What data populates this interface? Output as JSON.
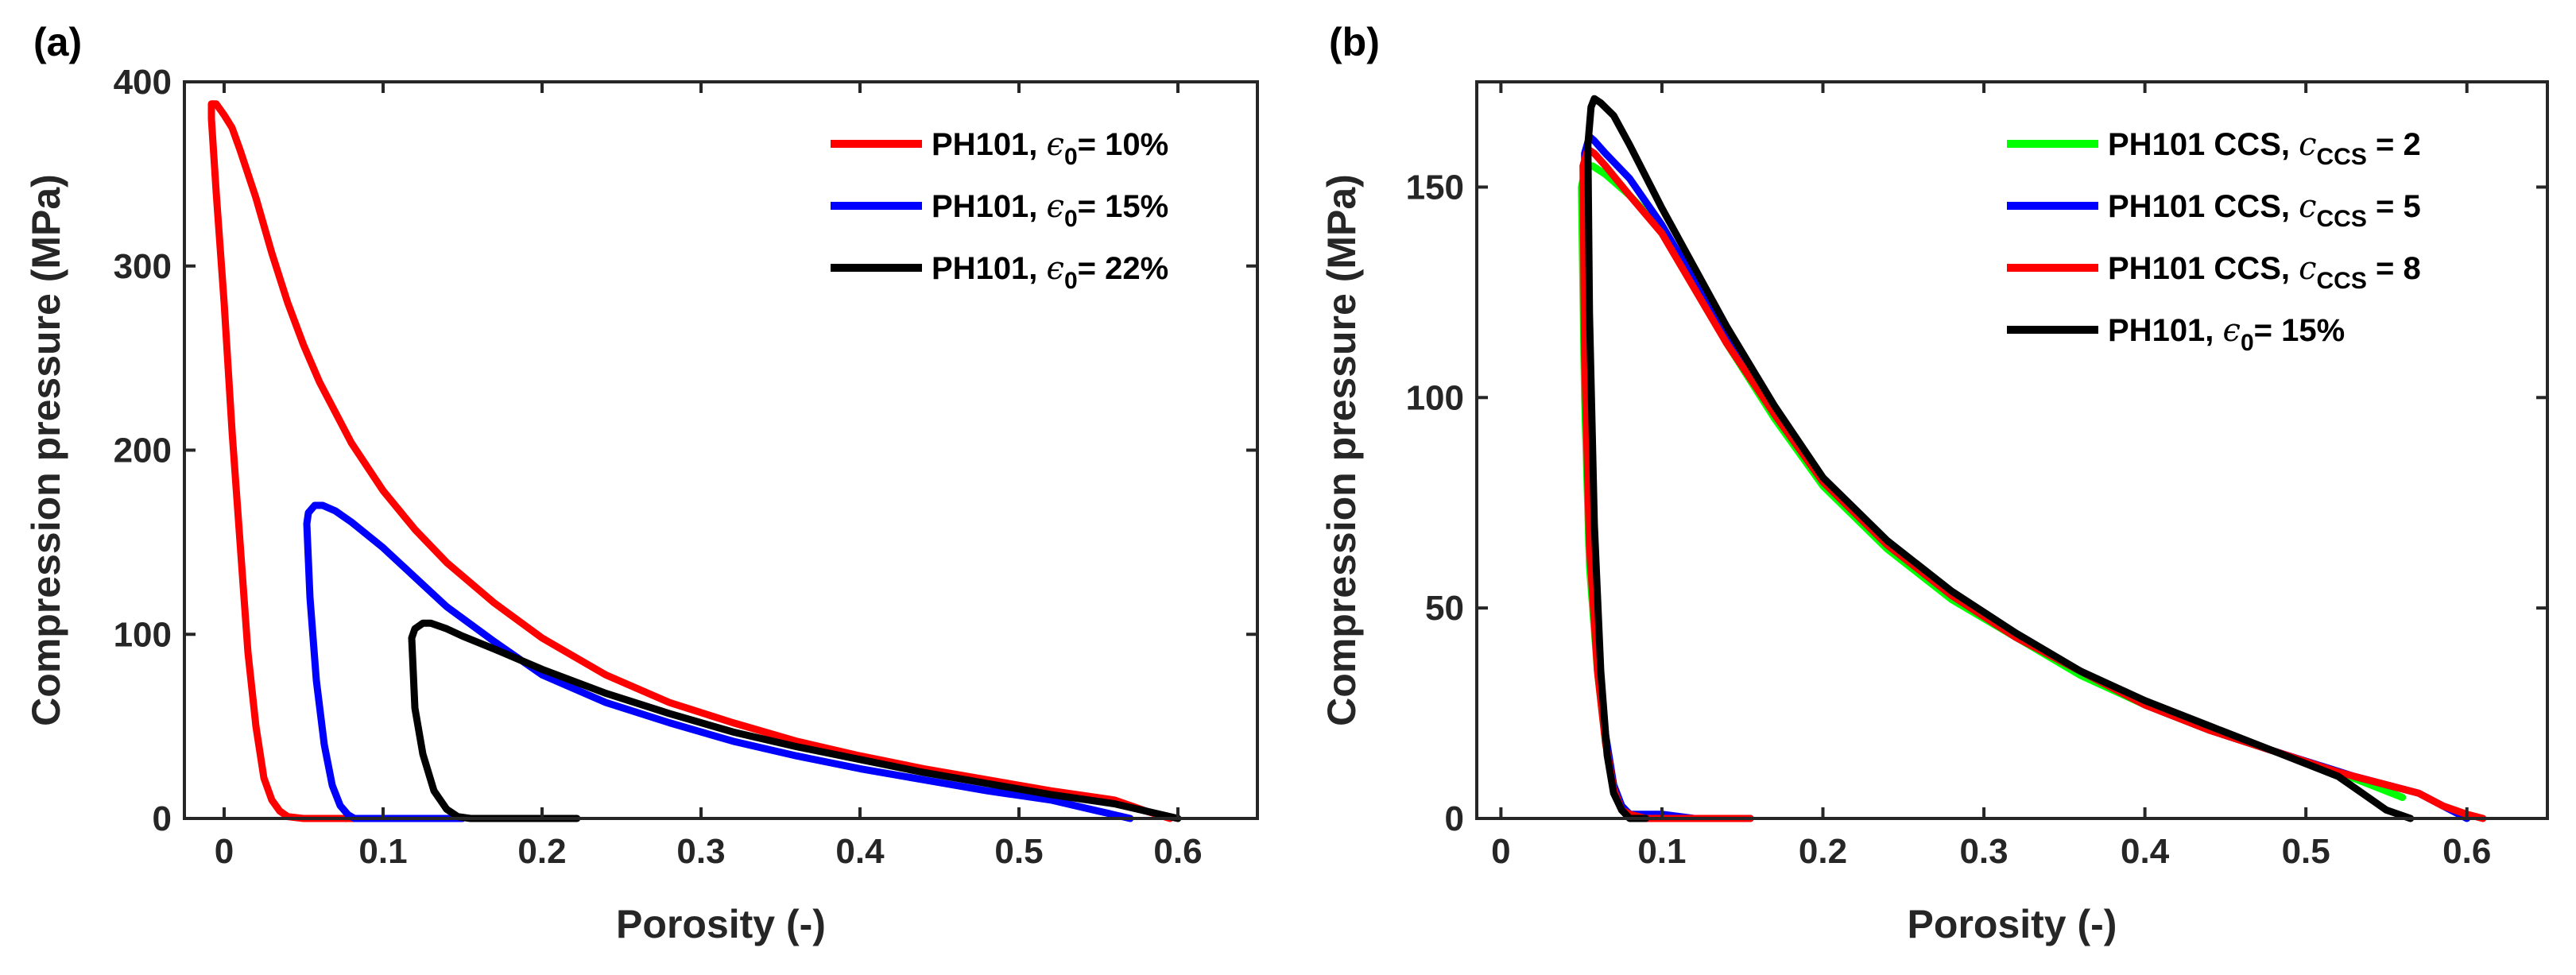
{
  "chart_data": [
    {
      "type": "line",
      "panel_label": "(a)",
      "xlabel": "Porosity (-)",
      "ylabel": "Compression pressure (MPa)",
      "xlim": [
        -0.025,
        0.65
      ],
      "ylim": [
        0,
        400
      ],
      "xticks": [
        0,
        0.1,
        0.2,
        0.3,
        0.4,
        0.5,
        0.6
      ],
      "xtick_labels": [
        "0",
        "0.1",
        "0.2",
        "0.3",
        "0.4",
        "0.5",
        "0.6"
      ],
      "yticks": [
        0,
        100,
        200,
        300,
        400
      ],
      "ytick_labels": [
        "0",
        "100",
        "200",
        "300",
        "400"
      ],
      "legend_position": "top-right",
      "grid": false,
      "series": [
        {
          "legend": {
            "prefix": "PH101, ",
            "symbol": "ϵ",
            "sub": "0",
            "suffix": "= 10%"
          },
          "color": "#ff0000",
          "x": [
            0.595,
            0.58,
            0.56,
            0.52,
            0.48,
            0.44,
            0.4,
            0.36,
            0.32,
            0.28,
            0.24,
            0.2,
            0.17,
            0.14,
            0.12,
            0.1,
            0.08,
            0.06,
            0.05,
            0.04,
            0.03,
            0.02,
            0.01,
            0.005,
            0.0,
            -0.005,
            -0.008,
            -0.008,
            -0.005,
            0.0,
            0.005,
            0.01,
            0.015,
            0.02,
            0.025,
            0.03,
            0.035,
            0.04,
            0.05,
            0.07,
            0.1,
            0.14
          ],
          "y": [
            0,
            4,
            10,
            15,
            21,
            27,
            34,
            42,
            52,
            63,
            78,
            98,
            117,
            139,
            157,
            178,
            204,
            237,
            257,
            280,
            307,
            337,
            363,
            375,
            382,
            388,
            388,
            380,
            340,
            280,
            210,
            150,
            90,
            50,
            22,
            10,
            4,
            1,
            0,
            0,
            0,
            0
          ]
        },
        {
          "legend": {
            "prefix": "PH101, ",
            "symbol": "ϵ",
            "sub": "0",
            "suffix": "= 15%"
          },
          "color": "#0000ff",
          "x": [
            0.57,
            0.55,
            0.52,
            0.48,
            0.44,
            0.4,
            0.36,
            0.32,
            0.28,
            0.24,
            0.2,
            0.17,
            0.14,
            0.12,
            0.1,
            0.08,
            0.07,
            0.062,
            0.057,
            0.053,
            0.052,
            0.054,
            0.058,
            0.063,
            0.068,
            0.073,
            0.078,
            0.082,
            0.09,
            0.1,
            0.12,
            0.15
          ],
          "y": [
            0,
            4,
            10,
            15,
            21,
            27,
            34,
            42,
            52,
            63,
            78,
            96,
            115,
            131,
            147,
            161,
            167,
            170,
            170,
            166,
            160,
            120,
            75,
            40,
            18,
            7,
            2,
            0,
            0,
            0,
            0,
            0
          ]
        },
        {
          "legend": {
            "prefix": "PH101, ",
            "symbol": "ϵ",
            "sub": "0",
            "suffix": "= 22%"
          },
          "color": "#000000",
          "x": [
            0.6,
            0.58,
            0.56,
            0.52,
            0.48,
            0.44,
            0.4,
            0.36,
            0.32,
            0.28,
            0.24,
            0.2,
            0.17,
            0.15,
            0.14,
            0.13,
            0.125,
            0.12,
            0.118,
            0.12,
            0.125,
            0.132,
            0.14,
            0.147,
            0.155,
            0.17,
            0.2,
            0.222
          ],
          "y": [
            0,
            4,
            8,
            13,
            19,
            25,
            32,
            39,
            47,
            57,
            68,
            81,
            92,
            99,
            103,
            106,
            106,
            103,
            98,
            60,
            35,
            15,
            5,
            1,
            0,
            0,
            0,
            0
          ]
        }
      ]
    },
    {
      "type": "line",
      "panel_label": "(b)",
      "xlabel": "Porosity (-)",
      "ylabel": "Compression pressure (MPa)",
      "xlim": [
        -0.015,
        0.65
      ],
      "ylim": [
        0,
        175
      ],
      "xticks": [
        0,
        0.1,
        0.2,
        0.3,
        0.4,
        0.5,
        0.6
      ],
      "xtick_labels": [
        "0",
        "0.1",
        "0.2",
        "0.3",
        "0.4",
        "0.5",
        "0.6"
      ],
      "yticks": [
        0,
        50,
        100,
        150
      ],
      "ytick_labels": [
        "0",
        "50",
        "100",
        "150"
      ],
      "legend_position": "top-right",
      "grid": false,
      "series": [
        {
          "legend": {
            "prefix": "PH101 CCS, ",
            "symbol": "c",
            "sub": "CCS",
            "suffix": " = 2"
          },
          "color": "#00ff00",
          "x": [
            0.56,
            0.52,
            0.48,
            0.44,
            0.4,
            0.36,
            0.32,
            0.28,
            0.24,
            0.2,
            0.17,
            0.14,
            0.12,
            0.1,
            0.08,
            0.065,
            0.057,
            0.053,
            0.05,
            0.052,
            0.055,
            0.06,
            0.065,
            0.07,
            0.075,
            0.08,
            0.09,
            0.1,
            0.12,
            0.15
          ],
          "y": [
            5,
            11,
            16,
            21,
            27,
            34,
            43,
            52,
            64,
            79,
            95,
            113,
            127,
            140,
            148,
            153,
            155,
            155,
            150,
            100,
            60,
            35,
            18,
            8,
            3,
            1,
            0,
            0,
            0,
            0
          ]
        },
        {
          "legend": {
            "prefix": "PH101 CCS, ",
            "symbol": "c",
            "sub": "CCS",
            "suffix": "  = 5"
          },
          "color": "#0000ff",
          "x": [
            0.6,
            0.57,
            0.53,
            0.48,
            0.44,
            0.4,
            0.36,
            0.32,
            0.28,
            0.24,
            0.2,
            0.17,
            0.14,
            0.12,
            0.1,
            0.08,
            0.065,
            0.058,
            0.055,
            0.052,
            0.053,
            0.056,
            0.06,
            0.065,
            0.07,
            0.075,
            0.08,
            0.09,
            0.1,
            0.12,
            0.155
          ],
          "y": [
            0,
            6,
            10,
            16,
            21,
            27,
            35,
            43,
            53,
            65,
            80,
            96,
            114,
            128,
            141,
            152,
            158,
            161,
            162,
            158,
            120,
            75,
            40,
            20,
            8,
            3,
            1,
            1,
            1,
            0,
            0
          ]
        },
        {
          "legend": {
            "prefix": "PH101 CCS, ",
            "symbol": "c",
            "sub": "CCS",
            "suffix": " = 8"
          },
          "color": "#ff0000",
          "x": [
            0.61,
            0.6,
            0.585,
            0.57,
            0.55,
            0.52,
            0.48,
            0.44,
            0.4,
            0.36,
            0.32,
            0.28,
            0.24,
            0.2,
            0.17,
            0.14,
            0.12,
            0.1,
            0.08,
            0.065,
            0.058,
            0.054,
            0.051,
            0.052,
            0.055,
            0.06,
            0.065,
            0.07,
            0.075,
            0.08,
            0.09,
            0.1,
            0.12,
            0.155
          ],
          "y": [
            0,
            1,
            3,
            6,
            8,
            11,
            16,
            21,
            27,
            35,
            43,
            53,
            65,
            80,
            96,
            113,
            126,
            139,
            148,
            155,
            158,
            159,
            155,
            110,
            65,
            35,
            18,
            7,
            2,
            1,
            0,
            0,
            0,
            0
          ]
        },
        {
          "legend": {
            "prefix": "PH101, ",
            "symbol": "ϵ",
            "sub": "0",
            "suffix": "= 15%"
          },
          "color": "#000000",
          "x": [
            0.565,
            0.55,
            0.535,
            0.52,
            0.48,
            0.44,
            0.4,
            0.36,
            0.32,
            0.28,
            0.24,
            0.2,
            0.17,
            0.14,
            0.12,
            0.1,
            0.08,
            0.07,
            0.062,
            0.058,
            0.056,
            0.054,
            0.055,
            0.058,
            0.062,
            0.066,
            0.07,
            0.075,
            0.08,
            0.09
          ],
          "y": [
            0,
            2,
            6,
            10,
            16,
            22,
            28,
            35,
            44,
            54,
            66,
            81,
            98,
            117,
            131,
            145,
            160,
            167,
            170,
            171,
            169,
            160,
            120,
            70,
            35,
            15,
            6,
            2,
            0,
            0
          ]
        }
      ]
    }
  ]
}
